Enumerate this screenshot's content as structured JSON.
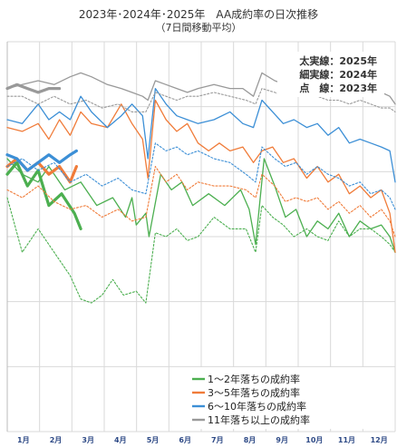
{
  "chart_data": {
    "type": "line",
    "title": "2023年･2024年･2025年　AA成約率の日次推移",
    "subtitle": "（7日間移動平均）",
    "xlabel": "",
    "ylabel": "",
    "months": [
      "1月",
      "2月",
      "3月",
      "4月",
      "5月",
      "6月",
      "7月",
      "8月",
      "9月",
      "10月",
      "11月",
      "12月"
    ],
    "x_range": [
      1,
      365
    ],
    "y_range": [
      0,
      1
    ],
    "y_tick_count": 6,
    "grid": true,
    "line_type_key": [
      "太実線：2025年",
      "細実線：2024年",
      "点　線：2023年"
    ],
    "legend_position": "bottom-right",
    "series_groups": [
      {
        "name": "1～2年落ちの成約率",
        "color": "#4caf50",
        "y2025": [
          [
            1,
            0.66
          ],
          [
            10,
            0.69
          ],
          [
            20,
            0.63
          ],
          [
            30,
            0.67
          ],
          [
            40,
            0.58
          ],
          [
            52,
            0.61
          ],
          [
            64,
            0.56
          ],
          [
            70,
            0.52
          ]
        ],
        "y2024": [
          [
            1,
            0.7
          ],
          [
            15,
            0.66
          ],
          [
            30,
            0.64
          ],
          [
            40,
            0.68
          ],
          [
            55,
            0.62
          ],
          [
            70,
            0.64
          ],
          [
            85,
            0.58
          ],
          [
            100,
            0.6
          ],
          [
            112,
            0.55
          ],
          [
            118,
            0.6
          ],
          [
            122,
            0.53
          ],
          [
            131,
            0.56
          ],
          [
            134,
            0.5
          ],
          [
            145,
            0.66
          ],
          [
            155,
            0.62
          ],
          [
            165,
            0.64
          ],
          [
            175,
            0.58
          ],
          [
            190,
            0.61
          ],
          [
            205,
            0.58
          ],
          [
            220,
            0.62
          ],
          [
            228,
            0.57
          ],
          [
            234,
            0.48
          ],
          [
            242,
            0.7
          ],
          [
            252,
            0.63
          ],
          [
            262,
            0.55
          ],
          [
            272,
            0.57
          ],
          [
            282,
            0.5
          ],
          [
            292,
            0.54
          ],
          [
            302,
            0.52
          ],
          [
            312,
            0.56
          ],
          [
            322,
            0.5
          ],
          [
            332,
            0.54
          ],
          [
            342,
            0.52
          ],
          [
            352,
            0.53
          ],
          [
            360,
            0.5
          ],
          [
            365,
            0.46
          ]
        ],
        "y2023": [
          [
            1,
            0.6
          ],
          [
            15,
            0.46
          ],
          [
            30,
            0.52
          ],
          [
            45,
            0.46
          ],
          [
            60,
            0.4
          ],
          [
            70,
            0.34
          ],
          [
            80,
            0.33
          ],
          [
            90,
            0.35
          ],
          [
            100,
            0.39
          ],
          [
            110,
            0.35
          ],
          [
            122,
            0.36
          ],
          [
            131,
            0.33
          ],
          [
            140,
            0.51
          ],
          [
            150,
            0.5
          ],
          [
            160,
            0.52
          ],
          [
            170,
            0.49
          ],
          [
            180,
            0.5
          ],
          [
            195,
            0.55
          ],
          [
            210,
            0.52
          ],
          [
            225,
            0.52
          ],
          [
            234,
            0.46
          ],
          [
            240,
            0.58
          ],
          [
            250,
            0.55
          ],
          [
            260,
            0.53
          ],
          [
            270,
            0.5
          ],
          [
            282,
            0.52
          ],
          [
            292,
            0.5
          ],
          [
            302,
            0.49
          ],
          [
            312,
            0.54
          ],
          [
            322,
            0.5
          ],
          [
            332,
            0.52
          ],
          [
            342,
            0.52
          ],
          [
            352,
            0.5
          ],
          [
            360,
            0.48
          ],
          [
            365,
            0.46
          ]
        ]
      },
      {
        "name": "3～5年落ちの成約率",
        "color": "#f07c3a",
        "y2025": [
          [
            1,
            0.68
          ],
          [
            10,
            0.7
          ],
          [
            20,
            0.67
          ],
          [
            30,
            0.69
          ],
          [
            40,
            0.66
          ],
          [
            50,
            0.68
          ],
          [
            60,
            0.64
          ],
          [
            66,
            0.68
          ]
        ],
        "y2024": [
          [
            1,
            0.78
          ],
          [
            15,
            0.77
          ],
          [
            30,
            0.79
          ],
          [
            40,
            0.75
          ],
          [
            50,
            0.8
          ],
          [
            60,
            0.76
          ],
          [
            70,
            0.82
          ],
          [
            80,
            0.79
          ],
          [
            95,
            0.78
          ],
          [
            108,
            0.84
          ],
          [
            118,
            0.79
          ],
          [
            128,
            0.75
          ],
          [
            133,
            0.65
          ],
          [
            140,
            0.85
          ],
          [
            150,
            0.8
          ],
          [
            160,
            0.77
          ],
          [
            170,
            0.79
          ],
          [
            180,
            0.74
          ],
          [
            190,
            0.72
          ],
          [
            200,
            0.74
          ],
          [
            210,
            0.72
          ],
          [
            222,
            0.73
          ],
          [
            232,
            0.69
          ],
          [
            240,
            0.72
          ],
          [
            250,
            0.73
          ],
          [
            260,
            0.69
          ],
          [
            270,
            0.7
          ],
          [
            282,
            0.65
          ],
          [
            292,
            0.68
          ],
          [
            302,
            0.64
          ],
          [
            312,
            0.66
          ],
          [
            322,
            0.61
          ],
          [
            332,
            0.63
          ],
          [
            342,
            0.6
          ],
          [
            352,
            0.62
          ],
          [
            360,
            0.56
          ],
          [
            365,
            0.46
          ]
        ],
        "y2023": [
          [
            1,
            0.62
          ],
          [
            15,
            0.6
          ],
          [
            30,
            0.63
          ],
          [
            45,
            0.59
          ],
          [
            60,
            0.57
          ],
          [
            75,
            0.58
          ],
          [
            90,
            0.55
          ],
          [
            105,
            0.57
          ],
          [
            118,
            0.54
          ],
          [
            131,
            0.55
          ],
          [
            140,
            0.68
          ],
          [
            150,
            0.64
          ],
          [
            160,
            0.66
          ],
          [
            170,
            0.62
          ],
          [
            180,
            0.64
          ],
          [
            195,
            0.63
          ],
          [
            210,
            0.63
          ],
          [
            225,
            0.62
          ],
          [
            234,
            0.6
          ],
          [
            240,
            0.66
          ],
          [
            252,
            0.63
          ],
          [
            262,
            0.59
          ],
          [
            272,
            0.6
          ],
          [
            282,
            0.59
          ],
          [
            292,
            0.6
          ],
          [
            302,
            0.57
          ],
          [
            312,
            0.59
          ],
          [
            322,
            0.56
          ],
          [
            332,
            0.58
          ],
          [
            342,
            0.55
          ],
          [
            352,
            0.57
          ],
          [
            360,
            0.54
          ],
          [
            365,
            0.5
          ]
        ]
      },
      {
        "name": "6～10年落ちの成約率",
        "color": "#3c8fd6",
        "y2025": [
          [
            1,
            0.71
          ],
          [
            10,
            0.7
          ],
          [
            20,
            0.67
          ],
          [
            30,
            0.69
          ],
          [
            40,
            0.71
          ],
          [
            50,
            0.69
          ],
          [
            60,
            0.71
          ],
          [
            66,
            0.72
          ]
        ],
        "y2024": [
          [
            1,
            0.8
          ],
          [
            15,
            0.79
          ],
          [
            30,
            0.84
          ],
          [
            40,
            0.8
          ],
          [
            50,
            0.82
          ],
          [
            60,
            0.8
          ],
          [
            70,
            0.86
          ],
          [
            80,
            0.82
          ],
          [
            95,
            0.78
          ],
          [
            108,
            0.81
          ],
          [
            118,
            0.84
          ],
          [
            128,
            0.81
          ],
          [
            133,
            0.7
          ],
          [
            140,
            0.88
          ],
          [
            150,
            0.84
          ],
          [
            160,
            0.81
          ],
          [
            170,
            0.8
          ],
          [
            180,
            0.79
          ],
          [
            195,
            0.8
          ],
          [
            210,
            0.82
          ],
          [
            222,
            0.79
          ],
          [
            232,
            0.78
          ],
          [
            240,
            0.85
          ],
          [
            250,
            0.82
          ],
          [
            260,
            0.79
          ],
          [
            270,
            0.8
          ],
          [
            282,
            0.78
          ],
          [
            292,
            0.79
          ],
          [
            302,
            0.76
          ],
          [
            312,
            0.78
          ],
          [
            322,
            0.74
          ],
          [
            332,
            0.75
          ],
          [
            342,
            0.74
          ],
          [
            352,
            0.73
          ],
          [
            360,
            0.72
          ],
          [
            365,
            0.64
          ]
        ],
        "y2023": [
          [
            1,
            0.68
          ],
          [
            15,
            0.7
          ],
          [
            30,
            0.67
          ],
          [
            45,
            0.69
          ],
          [
            60,
            0.64
          ],
          [
            75,
            0.66
          ],
          [
            90,
            0.63
          ],
          [
            105,
            0.65
          ],
          [
            118,
            0.62
          ],
          [
            131,
            0.61
          ],
          [
            140,
            0.74
          ],
          [
            150,
            0.72
          ],
          [
            160,
            0.73
          ],
          [
            170,
            0.71
          ],
          [
            180,
            0.72
          ],
          [
            195,
            0.7
          ],
          [
            210,
            0.69
          ],
          [
            225,
            0.66
          ],
          [
            234,
            0.64
          ],
          [
            240,
            0.73
          ],
          [
            252,
            0.7
          ],
          [
            262,
            0.68
          ],
          [
            272,
            0.69
          ],
          [
            282,
            0.66
          ],
          [
            292,
            0.68
          ],
          [
            302,
            0.66
          ],
          [
            312,
            0.65
          ],
          [
            322,
            0.63
          ],
          [
            332,
            0.64
          ],
          [
            342,
            0.61
          ],
          [
            352,
            0.62
          ],
          [
            360,
            0.6
          ],
          [
            365,
            0.57
          ]
        ]
      },
      {
        "name": "11年落ち以上の成約率",
        "color": "#999999",
        "y2025": [
          [
            1,
            0.88
          ],
          [
            10,
            0.89
          ],
          [
            20,
            0.88
          ],
          [
            30,
            0.87
          ],
          [
            40,
            0.88
          ],
          [
            50,
            0.88
          ]
        ],
        "y2024": [
          [
            1,
            0.88
          ],
          [
            15,
            0.89
          ],
          [
            30,
            0.9
          ],
          [
            45,
            0.89
          ],
          [
            60,
            0.91
          ],
          [
            70,
            0.92
          ],
          [
            80,
            0.91
          ],
          [
            95,
            0.89
          ],
          [
            108,
            0.88
          ],
          [
            118,
            0.87
          ],
          [
            128,
            0.86
          ],
          [
            133,
            0.85
          ],
          [
            140,
            0.9
          ],
          [
            150,
            0.89
          ],
          [
            160,
            0.88
          ],
          [
            170,
            0.87
          ],
          [
            180,
            0.88
          ],
          [
            195,
            0.89
          ],
          [
            210,
            0.88
          ],
          [
            222,
            0.88
          ],
          [
            232,
            0.86
          ],
          [
            240,
            0.92
          ],
          [
            252,
            0.9
          ],
          [
            262,
            0.89
          ],
          [
            272,
            0.9
          ],
          [
            282,
            0.88
          ],
          [
            292,
            0.89
          ],
          [
            302,
            0.88
          ],
          [
            312,
            0.88
          ],
          [
            322,
            0.87
          ],
          [
            332,
            0.88
          ],
          [
            342,
            0.86
          ],
          [
            352,
            0.87
          ],
          [
            360,
            0.86
          ],
          [
            365,
            0.84
          ]
        ],
        "y2023": [
          [
            1,
            0.86
          ],
          [
            15,
            0.86
          ],
          [
            30,
            0.84
          ],
          [
            45,
            0.86
          ],
          [
            60,
            0.84
          ],
          [
            75,
            0.85
          ],
          [
            90,
            0.83
          ],
          [
            105,
            0.84
          ],
          [
            118,
            0.82
          ],
          [
            131,
            0.82
          ],
          [
            140,
            0.87
          ],
          [
            150,
            0.86
          ],
          [
            160,
            0.85
          ],
          [
            170,
            0.86
          ],
          [
            180,
            0.86
          ],
          [
            195,
            0.87
          ],
          [
            210,
            0.86
          ],
          [
            225,
            0.85
          ],
          [
            234,
            0.84
          ],
          [
            240,
            0.88
          ],
          [
            252,
            0.87
          ],
          [
            262,
            0.86
          ],
          [
            272,
            0.87
          ],
          [
            282,
            0.86
          ],
          [
            292,
            0.86
          ],
          [
            302,
            0.85
          ],
          [
            312,
            0.85
          ],
          [
            322,
            0.84
          ],
          [
            332,
            0.85
          ],
          [
            342,
            0.84
          ],
          [
            352,
            0.83
          ],
          [
            360,
            0.83
          ],
          [
            365,
            0.82
          ]
        ]
      }
    ]
  }
}
